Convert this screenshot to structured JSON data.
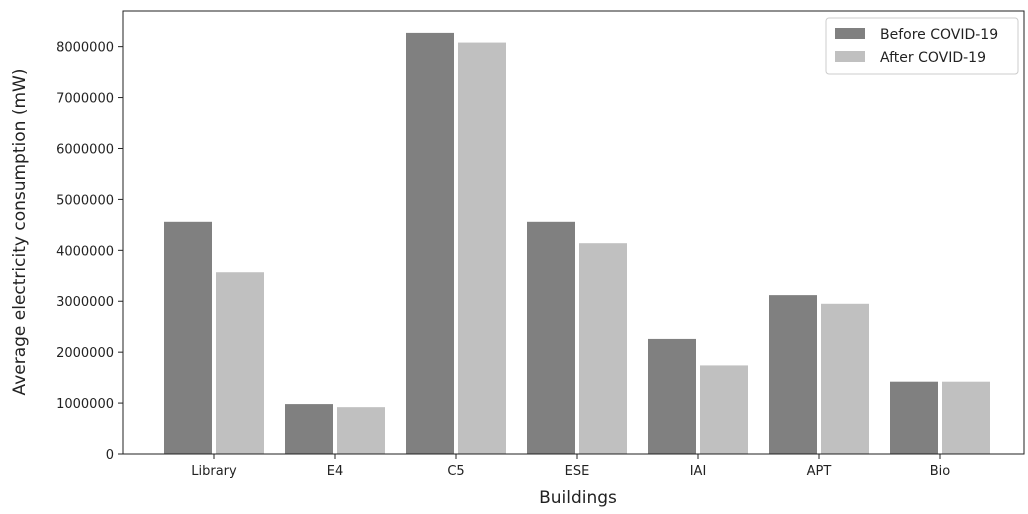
{
  "chart_data": {
    "type": "bar",
    "title": "",
    "xlabel": "Buildings",
    "ylabel": "Average electricity consumption (mW)",
    "categories": [
      "Library",
      "E4",
      "C5",
      "ESE",
      "IAI",
      "APT",
      "Bio"
    ],
    "series": [
      {
        "name": "Before COVID-19",
        "color": "#808080",
        "values": [
          4560000,
          980000,
          8270000,
          4560000,
          2260000,
          3120000,
          1420000
        ]
      },
      {
        "name": "After COVID-19",
        "color": "#c0c0c0",
        "values": [
          3570000,
          920000,
          8080000,
          4140000,
          1740000,
          2950000,
          1420000
        ]
      }
    ],
    "ylim": [
      0,
      8700000
    ],
    "yticks": [
      "0",
      "1000000",
      "2000000",
      "3000000",
      "4000000",
      "5000000",
      "6000000",
      "7000000",
      "8000000"
    ],
    "ytick_values": [
      0,
      1000000,
      2000000,
      3000000,
      4000000,
      5000000,
      6000000,
      7000000,
      8000000
    ],
    "grid": false,
    "legend_position": "top-right"
  }
}
